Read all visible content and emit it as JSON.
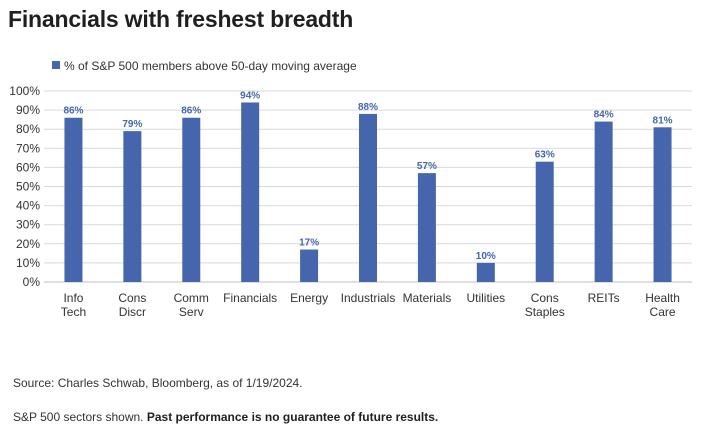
{
  "title": "Financials with freshest breadth",
  "footer": {
    "source": "Source: Charles Schwab, Bloomberg, as of 1/19/2024.",
    "note_plain": "S&P 500 sectors shown. ",
    "note_bold": "Past performance is no guarantee of future results."
  },
  "chart_data": {
    "type": "bar",
    "categories": [
      [
        "Info",
        "Tech"
      ],
      [
        "Cons",
        "Discr"
      ],
      [
        "Comm",
        "Serv"
      ],
      [
        "Financials"
      ],
      [
        "Energy"
      ],
      [
        "Industrials"
      ],
      [
        "Materials"
      ],
      [
        "Utilities"
      ],
      [
        "Cons",
        "Staples"
      ],
      [
        "REITs"
      ],
      [
        "Health",
        "Care"
      ]
    ],
    "series": [
      {
        "name": "% of S&P 500 members above 50-day moving average",
        "values": [
          86,
          79,
          86,
          94,
          17,
          88,
          57,
          10,
          63,
          84,
          81
        ],
        "labels": [
          "86%",
          "79%",
          "86%",
          "94%",
          "17%",
          "88%",
          "57%",
          "10%",
          "63%",
          "84%",
          "81%"
        ]
      }
    ],
    "ylim": [
      0,
      100
    ],
    "yticks": [
      0,
      10,
      20,
      30,
      40,
      50,
      60,
      70,
      80,
      90,
      100
    ],
    "ytick_labels": [
      "0%",
      "10%",
      "20%",
      "30%",
      "40%",
      "50%",
      "60%",
      "70%",
      "80%",
      "90%",
      "100%"
    ],
    "grid": true,
    "legend": "top-left",
    "bar_color": "#4566ad",
    "grid_color": "#d9d9d9"
  }
}
